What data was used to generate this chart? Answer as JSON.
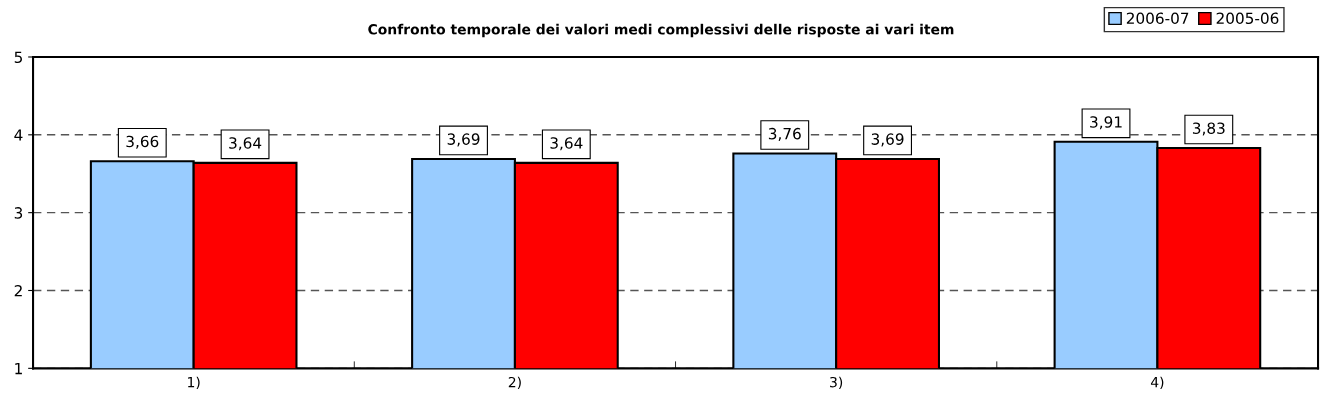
{
  "chart_data": {
    "type": "bar",
    "title": "Confronto temporale dei valori medi complessivi delle risposte ai vari item",
    "categories": [
      "1)",
      "2)",
      "3)",
      "4)"
    ],
    "series": [
      {
        "name": "2006-07",
        "color": "#99ccff",
        "values": [
          3.66,
          3.69,
          3.76,
          3.91
        ],
        "value_labels": [
          "3,66",
          "3,69",
          "3,76",
          "3,91"
        ]
      },
      {
        "name": "2005-06",
        "color": "#ff0000",
        "values": [
          3.64,
          3.64,
          3.69,
          3.83
        ],
        "value_labels": [
          "3,64",
          "3,64",
          "3,69",
          "3,83"
        ]
      }
    ],
    "ylim": [
      1,
      5
    ],
    "yticks": [
      1,
      2,
      3,
      4,
      5
    ],
    "grid": "y",
    "legend": "top right"
  }
}
